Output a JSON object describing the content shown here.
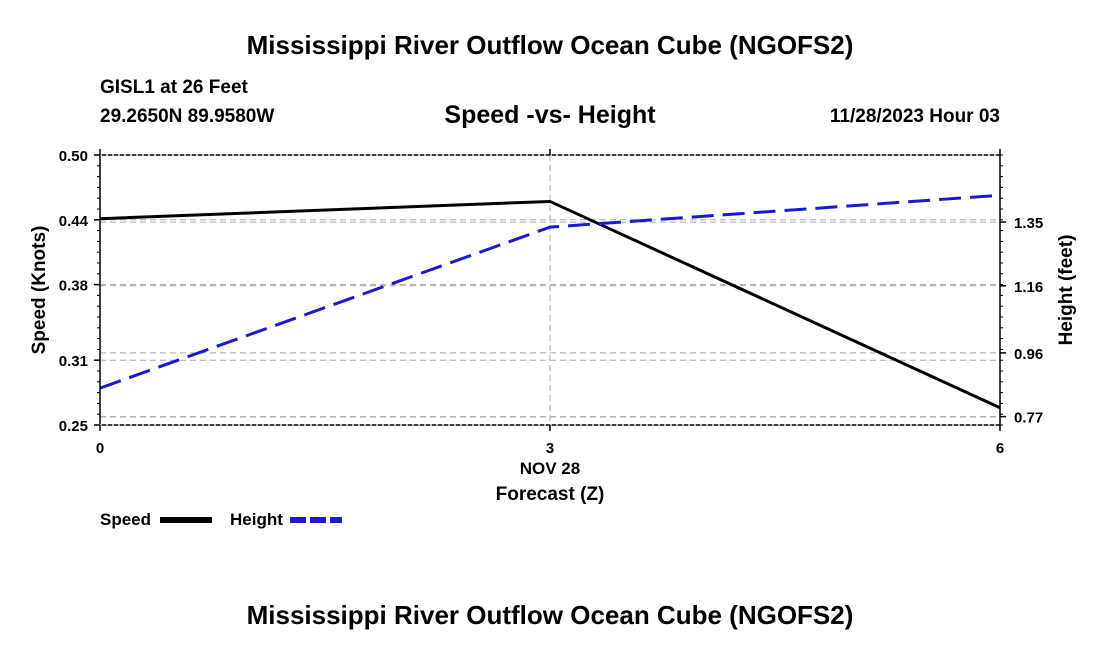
{
  "page": {
    "title_top": "Mississippi River Outflow Ocean Cube (NGOFS2)",
    "title_bottom": "Mississippi River Outflow Ocean Cube (NGOFS2)",
    "station": "GISL1 at 26 Feet",
    "coords": "29.2650N  89.9580W",
    "datetime": "11/28/2023 Hour 03"
  },
  "chart_data": {
    "type": "line",
    "title": "Speed -vs- Height",
    "xlabel": "Forecast (Z)",
    "date_label": "NOV 28",
    "ylabel_left": "Speed (Knots)",
    "ylabel_right": "Height (feet)",
    "x_ticks": [
      "0",
      "3",
      "6"
    ],
    "x_range": [
      0,
      6
    ],
    "left_ticks": [
      "0.50",
      "0.44",
      "0.38",
      "0.31",
      "0.25"
    ],
    "left_tick_values": [
      0.5,
      0.44,
      0.38,
      0.31,
      0.25
    ],
    "left_range": [
      0.25,
      0.5
    ],
    "right_ticks": [
      "1.35",
      "1.16",
      "0.96",
      "0.77"
    ],
    "right_tick_values": [
      1.35,
      1.16,
      0.96,
      0.77
    ],
    "right_range": [
      0.745,
      1.55
    ],
    "series": [
      {
        "name": "Speed",
        "axis": "left",
        "color": "#000000",
        "dash": "solid",
        "x": [
          0,
          3,
          6
        ],
        "values": [
          0.441,
          0.457,
          0.266
        ]
      },
      {
        "name": "Height",
        "axis": "right",
        "color": "#1a1acc",
        "dash": "dashed",
        "x": [
          0,
          3,
          6
        ],
        "values": [
          0.855,
          1.335,
          1.43
        ]
      }
    ],
    "legend": [
      "Speed",
      "Height"
    ]
  }
}
